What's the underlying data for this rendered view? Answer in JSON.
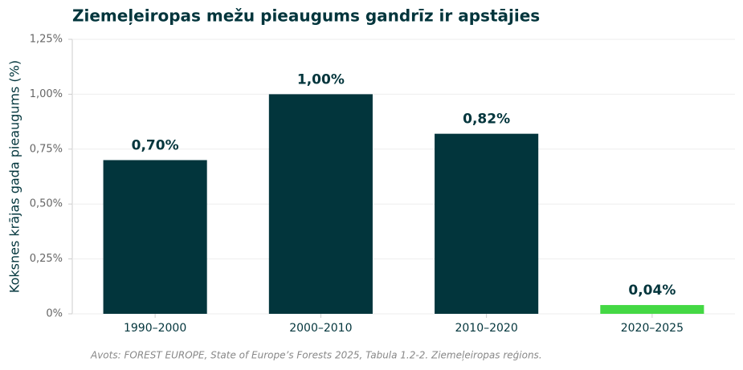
{
  "chart_data": {
    "type": "bar",
    "title": "Ziemeļeiropas mežu pieaugums gandrīz ir apstājies",
    "y_label": "Koksnes krājas gada pieaugums (%)",
    "source": "Avots: FOREST EUROPE, State of Europe’s Forests 2025, Tabula 1.2-2. Ziemeļeiropas reģions.",
    "categories": [
      "1990–2000",
      "2000–2010",
      "2010–2020",
      "2020–2025"
    ],
    "values": [
      0.7,
      1.0,
      0.82,
      0.04
    ],
    "value_labels": [
      "0,70%",
      "1,00%",
      "0,82%",
      "0,04%"
    ],
    "colors": [
      "#02353c",
      "#02353c",
      "#02353c",
      "#44d844"
    ],
    "ylim": [
      0,
      1.25
    ],
    "yticks": [
      {
        "value": 0,
        "label": "0%"
      },
      {
        "value": 0.25,
        "label": "0,25%"
      },
      {
        "value": 0.5,
        "label": "0,50%"
      },
      {
        "value": 0.75,
        "label": "0,75%"
      },
      {
        "value": 1.0,
        "label": "1,00%"
      },
      {
        "value": 1.25,
        "label": "1,25%"
      }
    ],
    "grid": true
  }
}
